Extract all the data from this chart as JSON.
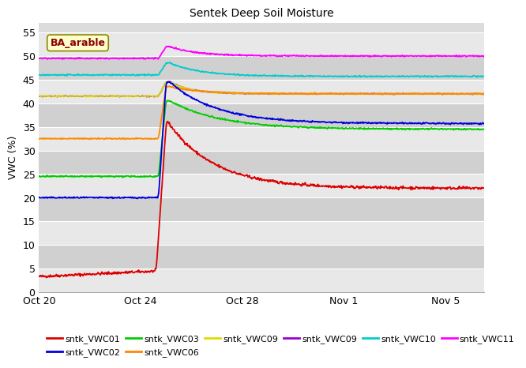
{
  "title": "Sentek Deep Soil Moisture",
  "ylabel": "VWC (%)",
  "ylim": [
    0,
    57
  ],
  "yticks": [
    0,
    5,
    10,
    15,
    20,
    25,
    30,
    35,
    40,
    45,
    50,
    55
  ],
  "bg_color": "#dcdcdc",
  "grid_color": "#ffffff",
  "annotation_text": "BA_arable",
  "annotation_bg": "#ffffcc",
  "annotation_border": "#888800",
  "annotation_text_color": "#8b0000",
  "series": {
    "sntk_VWC01": {
      "color": "#dd0000",
      "pre": 3.3,
      "peak": 36.5,
      "settle": 22.0
    },
    "sntk_VWC02": {
      "color": "#0000dd",
      "pre": 20.0,
      "peak": 44.5,
      "settle": 35.7
    },
    "sntk_VWC03": {
      "color": "#00cc00",
      "pre": 24.5,
      "peak": 40.5,
      "settle": 34.5
    },
    "sntk_VWC06": {
      "color": "#ff8800",
      "pre": 32.5,
      "peak": 43.5,
      "settle": 42.0
    },
    "sntk_VWC09y": {
      "color": "#dddd00",
      "pre": 41.5,
      "peak": 44.5,
      "settle": 42.0
    },
    "sntk_VWC09p": {
      "color": "#9900cc",
      "pre": 41.5,
      "peak": 44.5,
      "settle": 42.0
    },
    "sntk_VWC10": {
      "color": "#00cccc",
      "pre": 46.0,
      "peak": 48.5,
      "settle": 45.7
    },
    "sntk_VWC11": {
      "color": "#ff00ff",
      "pre": 49.5,
      "peak": 52.0,
      "settle": 50.0
    }
  },
  "legend_entries": [
    {
      "label": "sntk_VWC01",
      "color": "#dd0000"
    },
    {
      "label": "sntk_VWC02",
      "color": "#0000dd"
    },
    {
      "label": "sntk_VWC03",
      "color": "#00cc00"
    },
    {
      "label": "sntk_VWC06",
      "color": "#ff8800"
    },
    {
      "label": "sntk_VWC09",
      "color": "#dddd00"
    },
    {
      "label": "sntk_VWC09",
      "color": "#9900cc"
    },
    {
      "label": "sntk_VWC10",
      "color": "#00cccc"
    },
    {
      "label": "sntk_VWC11",
      "color": "#ff00ff"
    }
  ],
  "xtick_labels": [
    "Oct 20",
    "Oct 24",
    "Oct 28",
    "Nov 1",
    "Nov 5"
  ],
  "xtick_positions": [
    0,
    4,
    8,
    12,
    16
  ],
  "rain_day": 4.7,
  "total_days": 17.5
}
